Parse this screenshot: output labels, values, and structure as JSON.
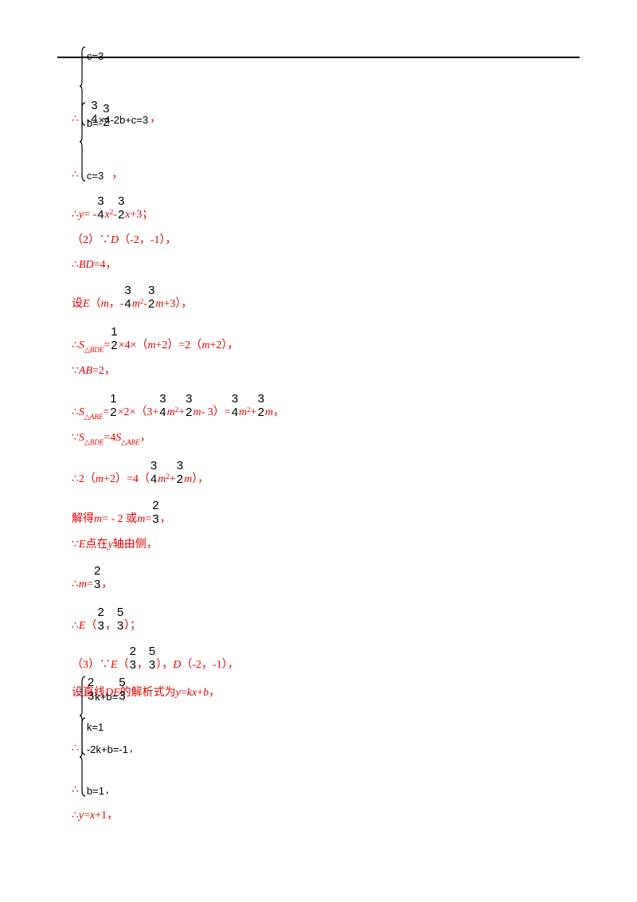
{
  "lines": [
    {
      "pre": "∴",
      "rows": [
        [
          "c=3"
        ],
        [
          "-",
          {
            "n": "3",
            "d": "4"
          },
          "×4-2b+c=3"
        ]
      ],
      "post": "，"
    },
    {
      "pre": "∴",
      "rows": [
        [
          "b=-",
          {
            "n": "3",
            "d": "2"
          }
        ],
        [
          "c=3"
        ]
      ],
      "post": "，"
    },
    {
      "parts": [
        "∴",
        {
          "i": "y"
        },
        "= -",
        {
          "n": "3",
          "d": "4"
        },
        {
          "i": "x"
        },
        {
          "sup": "2"
        },
        " - ",
        {
          "n": "3",
          "d": "2"
        },
        {
          "i": "x"
        },
        "+3；"
      ]
    },
    {
      "parts": [
        "（2）∵",
        {
          "i": "D"
        },
        "（-2，-1），"
      ]
    },
    {
      "parts": [
        "∴",
        {
          "i": "BD"
        },
        "=4，"
      ]
    },
    {
      "parts": [
        "设",
        {
          "i": "E"
        },
        "（",
        {
          "i": "m"
        },
        "，-",
        {
          "n": "3",
          "d": "4"
        },
        {
          "i": "m"
        },
        {
          "sup": "2"
        },
        " - ",
        {
          "n": "3",
          "d": "2"
        },
        {
          "i": "m"
        },
        "+3），"
      ]
    },
    {
      "parts": [
        "∴",
        {
          "i": "S"
        },
        {
          "sub": "△BDE"
        },
        "=",
        {
          "n": "1",
          "d": "2"
        },
        "×4×（",
        {
          "i": "m"
        },
        "+2）=2（",
        {
          "i": "m"
        },
        "+2），"
      ]
    },
    {
      "parts": [
        "∵",
        {
          "i": "AB"
        },
        "=2，"
      ]
    },
    {
      "parts": [
        "∴",
        {
          "i": "S"
        },
        {
          "sub": "△ABE"
        },
        "=",
        {
          "n": "1",
          "d": "2"
        },
        "×2×（3+",
        {
          "n": "3",
          "d": "4"
        },
        {
          "i": "m"
        },
        {
          "sup": "2"
        },
        "+",
        {
          "n": "3",
          "d": "2"
        },
        {
          "i": "m"
        },
        " - 3）=",
        {
          "n": "3",
          "d": "4"
        },
        {
          "i": "m"
        },
        {
          "sup": "2"
        },
        "+",
        {
          "n": "3",
          "d": "2"
        },
        {
          "i": "m"
        },
        "，"
      ]
    },
    {
      "parts": [
        "∵",
        {
          "i": "S"
        },
        {
          "sub": "△BDE"
        },
        "=4",
        {
          "i": "S"
        },
        {
          "sub": "△ABE"
        },
        "，"
      ]
    },
    {
      "parts": [
        "∴2（",
        {
          "i": "m"
        },
        "+2）=4（",
        {
          "n": "3",
          "d": "4"
        },
        {
          "i": "m"
        },
        {
          "sup": "2"
        },
        "+",
        {
          "n": "3",
          "d": "2"
        },
        {
          "i": "m"
        },
        "），"
      ]
    },
    {
      "parts": [
        "解得",
        {
          "i": "m"
        },
        "= - 2 或",
        {
          "i": "m"
        },
        "=",
        {
          "n": "2",
          "d": "3"
        },
        "，"
      ]
    },
    {
      "parts": [
        "∵",
        {
          "i": "E"
        },
        "点在",
        {
          "i": "y"
        },
        "轴由侧，"
      ]
    },
    {
      "parts": [
        "∴",
        {
          "i": "m"
        },
        "=",
        {
          "n": "2",
          "d": "3"
        },
        "，"
      ]
    },
    {
      "parts": [
        "∴",
        {
          "i": "E"
        },
        "（",
        {
          "n": "2",
          "d": "3"
        },
        "，",
        {
          "n": "5",
          "d": "3"
        },
        "）；"
      ]
    },
    {
      "parts": [
        "（3）∵",
        {
          "i": "E"
        },
        "（",
        {
          "n": "2",
          "d": "3"
        },
        "，",
        {
          "n": "5",
          "d": "3"
        },
        "），",
        {
          "i": "D"
        },
        "（-2，-1），"
      ]
    },
    {
      "parts": [
        "设直线",
        {
          "i": "DE"
        },
        "的解析式为",
        {
          "i": "y"
        },
        "=",
        {
          "i": "kx"
        },
        "+",
        {
          "i": "b"
        },
        "，"
      ]
    },
    {
      "pre": "∴",
      "rows": [
        [
          {
            "n": "2",
            "d": "3"
          },
          "k+b=",
          {
            "n": "5",
            "d": "3"
          }
        ],
        [
          "-2k+b=-1"
        ]
      ],
      "post": ","
    },
    {
      "pre": "∴",
      "rows": [
        [
          "k=1"
        ],
        [
          "b=1"
        ]
      ],
      "post": ","
    },
    {
      "parts": [
        "∴",
        {
          "i": "y"
        },
        "=",
        {
          "i": "x"
        },
        "+1，"
      ]
    }
  ]
}
